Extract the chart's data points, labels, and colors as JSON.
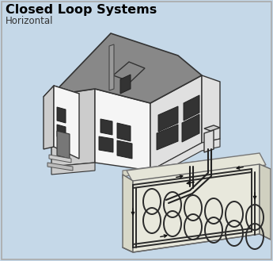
{
  "title": "Closed Loop Systems",
  "subtitle": "Horizontal",
  "bg_color": "#c5d8e8",
  "title_fontsize": 11.5,
  "subtitle_fontsize": 8.5,
  "border_color": "#aaaaaa",
  "roof_color": "#888888",
  "wall_light": "#f5f5f5",
  "wall_mid": "#e0e0e0",
  "wall_dark": "#cccccc",
  "window_color": "#333333",
  "ground_fill": "#deded0",
  "ground_edge": "#888888",
  "trench_front": "#e8e8dc",
  "trench_side": "#d8d8cc",
  "trench_floor": "#c8c8b8",
  "pipe_color": "#222222",
  "loop_color": "#2a2a2a",
  "arrow_color": "#111111"
}
